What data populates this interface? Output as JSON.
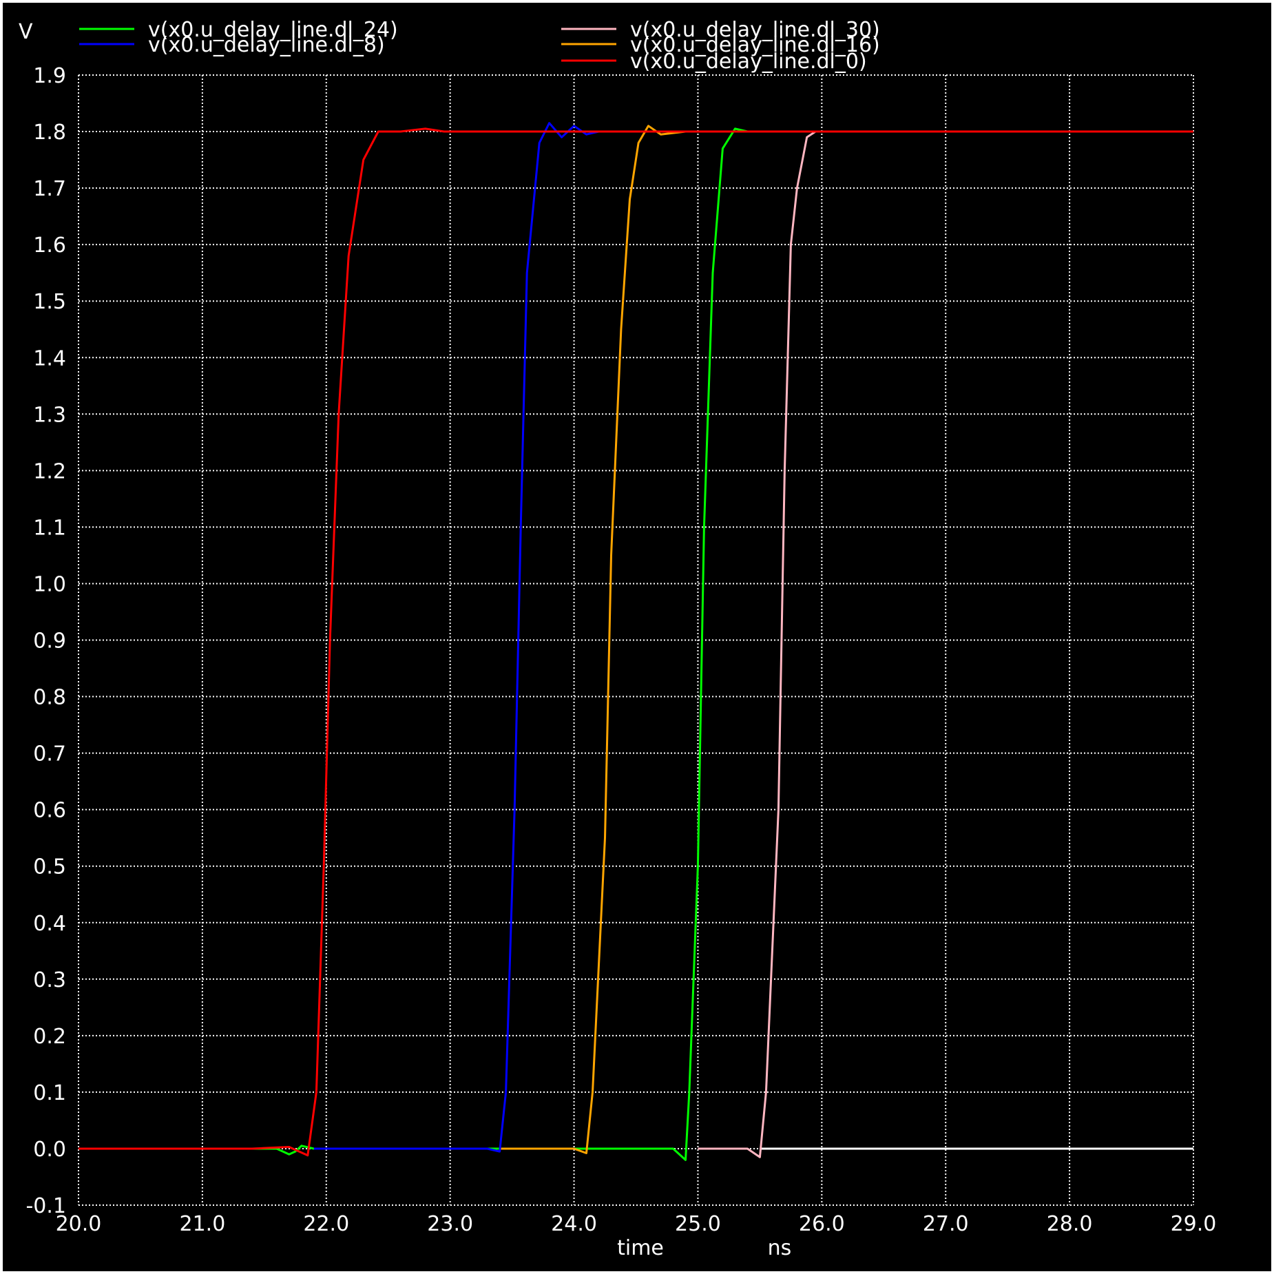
{
  "chart_data": {
    "type": "line",
    "xlabel": "time",
    "xunit": "ns",
    "ylabel": "V",
    "xlim": [
      20.0,
      29.0
    ],
    "ylim": [
      -0.1,
      1.9
    ],
    "x_ticks": [
      "20.0",
      "21.0",
      "22.0",
      "23.0",
      "24.0",
      "25.0",
      "26.0",
      "27.0",
      "28.0",
      "29.0"
    ],
    "y_ticks": [
      "-0.1",
      "0.0",
      "0.1",
      "0.2",
      "0.3",
      "0.4",
      "0.5",
      "0.6",
      "0.7",
      "0.8",
      "0.9",
      "1.0",
      "1.1",
      "1.2",
      "1.3",
      "1.4",
      "1.5",
      "1.6",
      "1.7",
      "1.8",
      "1.9"
    ],
    "grid": true,
    "legend_position": "top",
    "background_color": "#000000",
    "series": [
      {
        "name": "v(x0.u_delay_line.dl_30)",
        "color": "#ffb6c1",
        "points": [
          [
            25.0,
            0.0
          ],
          [
            25.2,
            0.0
          ],
          [
            25.4,
            0.0
          ],
          [
            25.5,
            -0.015
          ],
          [
            25.55,
            0.1
          ],
          [
            25.65,
            0.6
          ],
          [
            25.7,
            1.2
          ],
          [
            25.75,
            1.6
          ],
          [
            25.8,
            1.7
          ],
          [
            25.88,
            1.79
          ],
          [
            25.95,
            1.8
          ],
          [
            26.2,
            1.8
          ],
          [
            26.6,
            1.8
          ],
          [
            29.0,
            1.8
          ]
        ]
      },
      {
        "name": "v(x0.u_delay_line.dl_24)",
        "color": "#00ff00",
        "points": [
          [
            21.4,
            0.0
          ],
          [
            21.6,
            0.0
          ],
          [
            21.7,
            -0.01
          ],
          [
            21.75,
            -0.005
          ],
          [
            21.8,
            0.005
          ],
          [
            21.9,
            0.0
          ],
          [
            24.0,
            0.0
          ],
          [
            24.8,
            0.0
          ],
          [
            24.9,
            -0.02
          ],
          [
            24.93,
            0.1
          ],
          [
            25.0,
            0.5
          ],
          [
            25.05,
            1.1
          ],
          [
            25.12,
            1.55
          ],
          [
            25.2,
            1.77
          ],
          [
            25.3,
            1.805
          ],
          [
            25.4,
            1.8
          ],
          [
            26.0,
            1.8
          ],
          [
            26.5,
            1.8
          ]
        ]
      },
      {
        "name": "v(x0.u_delay_line.dl_16)",
        "color": "#ffa500",
        "points": [
          [
            23.4,
            0.0
          ],
          [
            24.0,
            0.0
          ],
          [
            24.1,
            -0.008
          ],
          [
            24.15,
            0.1
          ],
          [
            24.25,
            0.55
          ],
          [
            24.3,
            1.05
          ],
          [
            24.38,
            1.45
          ],
          [
            24.45,
            1.68
          ],
          [
            24.52,
            1.78
          ],
          [
            24.6,
            1.81
          ],
          [
            24.7,
            1.795
          ],
          [
            24.9,
            1.8
          ],
          [
            25.3,
            1.8
          ]
        ]
      },
      {
        "name": "v(x0.u_delay_line.dl_8)",
        "color": "#0000ff",
        "points": [
          [
            21.9,
            0.0
          ],
          [
            23.3,
            0.0
          ],
          [
            23.4,
            -0.005
          ],
          [
            23.45,
            0.1
          ],
          [
            23.52,
            0.6
          ],
          [
            23.57,
            1.1
          ],
          [
            23.62,
            1.55
          ],
          [
            23.72,
            1.78
          ],
          [
            23.8,
            1.815
          ],
          [
            23.9,
            1.79
          ],
          [
            24.0,
            1.81
          ],
          [
            24.1,
            1.795
          ],
          [
            24.2,
            1.8
          ],
          [
            24.3,
            1.8
          ],
          [
            24.6,
            1.8
          ],
          [
            25.0,
            1.8
          ]
        ]
      },
      {
        "name": "v(x0.u_delay_line.dl_0)",
        "color": "#ff0000",
        "points": [
          [
            20.0,
            0.0
          ],
          [
            21.4,
            0.0
          ],
          [
            21.7,
            0.003
          ],
          [
            21.85,
            -0.012
          ],
          [
            21.92,
            0.1
          ],
          [
            21.98,
            0.5
          ],
          [
            22.03,
            0.9
          ],
          [
            22.1,
            1.3
          ],
          [
            22.18,
            1.58
          ],
          [
            22.3,
            1.75
          ],
          [
            22.42,
            1.8
          ],
          [
            22.6,
            1.8
          ],
          [
            22.8,
            1.805
          ],
          [
            22.95,
            1.8
          ],
          [
            23.2,
            1.8
          ],
          [
            29.0,
            1.8
          ]
        ]
      }
    ]
  }
}
